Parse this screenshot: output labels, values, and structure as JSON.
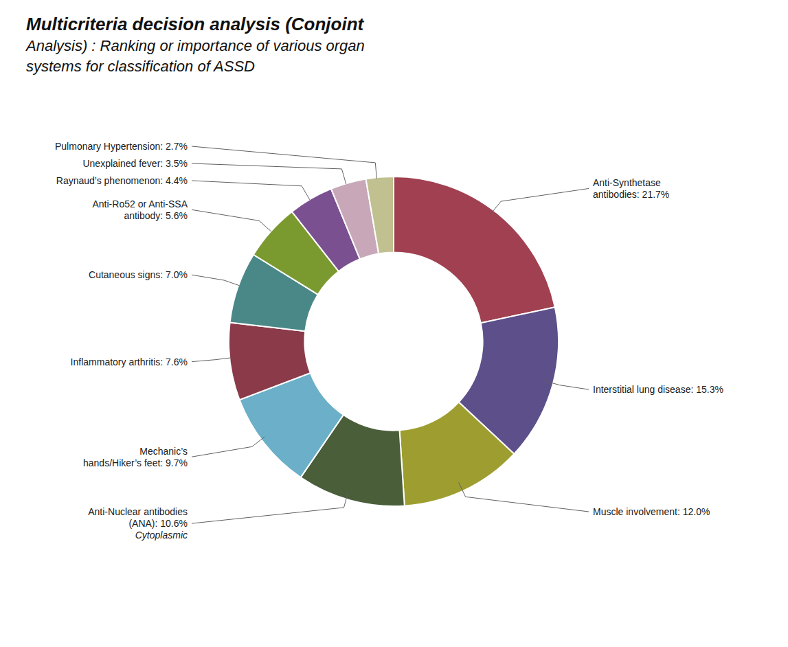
{
  "chart_data": {
    "type": "pie",
    "title": "Multicriteria decision analysis (Conjoint\nAnalysis) : Ranking or importance of various organ\nsystems for classification of ASSD",
    "categories": [
      "Anti-Synthetase\nantibodies: 21.7%",
      "Interstitial lung disease: 15.3%",
      "Muscle involvement: 12.0%",
      "Anti-Nuclear antibodies\n(ANA): 10.6%",
      "Mechanic’s\nhands/Hiker’s feet: 9.7%",
      "Inflammatory arthritis: 7.6%",
      "Cutaneous signs: 7.0%",
      "Anti-Ro52 or Anti-SSA\nantibody: 5.6%",
      "Raynaud’s phenomenon: 4.4%",
      "Unexplained fever: 3.5%",
      "Pulmonary Hypertension: 2.7%"
    ],
    "values": [
      21.7,
      15.3,
      12.0,
      10.6,
      9.7,
      7.6,
      7.0,
      5.6,
      4.4,
      3.5,
      2.7
    ],
    "colors": [
      "#A04050",
      "#5C4F8A",
      "#9E9E30",
      "#4A5E3A",
      "#6BAFC8",
      "#8A3A48",
      "#4A8888",
      "#7A9A30",
      "#7A5090",
      "#C8A8B8",
      "#C0C090"
    ],
    "annotations": [
      {
        "text": "Cytoplasmic",
        "category": "Anti-Nuclear antibodies\n(ANA): 10.6%"
      }
    ]
  }
}
